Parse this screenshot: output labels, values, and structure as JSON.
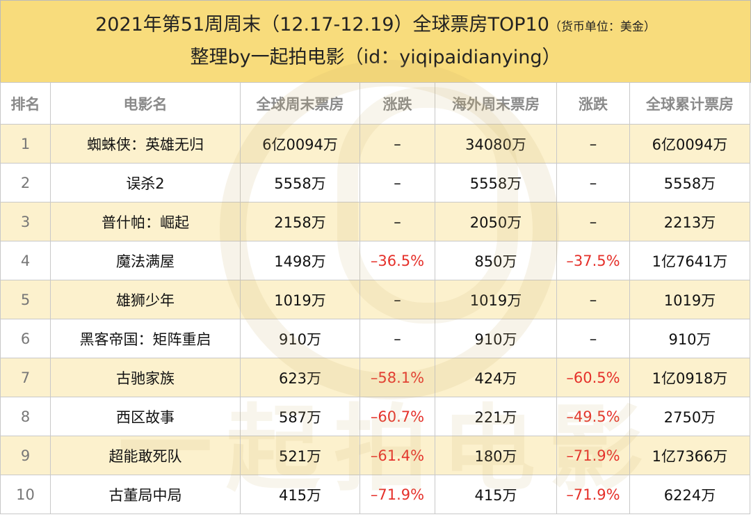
{
  "header": {
    "title": "2021年第51周周末（12.17-12.19）全球票房TOP10",
    "title_note": "（货币单位：美金）",
    "subtitle": "整理by一起拍电影（id：yiqipaidianying）"
  },
  "table": {
    "header": [
      "排名",
      "电影名",
      "全球周末票房",
      "涨跌",
      "海外周末票房",
      "涨跌",
      "全球累计票房"
    ],
    "rows": [
      [
        "1",
        "蜘蛛侠：英雄无归",
        "6亿0094万",
        "–",
        "34080万",
        "–",
        "6亿0094万"
      ],
      [
        "2",
        "误杀2",
        "5558万",
        "–",
        "5558万",
        "–",
        "5558万"
      ],
      [
        "3",
        "普什帕：崛起",
        "2158万",
        "–",
        "2050万",
        "–",
        "2213万"
      ],
      [
        "4",
        "魔法满屋",
        "1498万",
        "–36.5%",
        "850万",
        "–37.5%",
        "1亿7641万"
      ],
      [
        "5",
        "雄狮少年",
        "1019万",
        "–",
        "1019万",
        "–",
        "1019万"
      ],
      [
        "6",
        "黑客帝国：矩阵重启",
        "910万",
        "–",
        "910万",
        "–",
        "910万"
      ],
      [
        "7",
        "古驰家族",
        "623万",
        "–58.1%",
        "424万",
        "–60.5%",
        "1亿0918万"
      ],
      [
        "8",
        "西区故事",
        "587万",
        "–60.7%",
        "221万",
        "–49.5%",
        "2750万"
      ],
      [
        "9",
        "超能敢死队",
        "521万",
        "–61.4%",
        "180万",
        "–71.9%",
        "1亿7366万"
      ],
      [
        "10",
        "古董局中局",
        "415万",
        "–71.9%",
        "415万",
        "–71.9%",
        "6224万"
      ]
    ]
  },
  "watermark": "一起拍电影"
}
